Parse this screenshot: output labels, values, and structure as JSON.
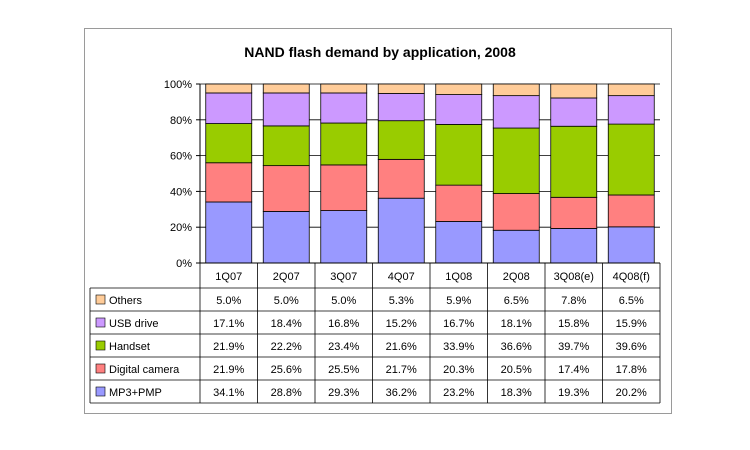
{
  "chart_data": {
    "type": "bar",
    "stacked": true,
    "title": "NAND flash demand by application, 2008",
    "xlabel": "",
    "ylabel": "",
    "ylim": [
      0,
      100
    ],
    "y_ticks": [
      "0%",
      "20%",
      "40%",
      "60%",
      "80%",
      "100%"
    ],
    "categories": [
      "1Q07",
      "2Q07",
      "3Q07",
      "4Q07",
      "1Q08",
      "2Q08",
      "3Q08(e)",
      "4Q08(f)"
    ],
    "series": [
      {
        "name": "MP3+PMP",
        "color": "#9999ff",
        "values": [
          34.1,
          28.8,
          29.3,
          36.2,
          23.2,
          18.3,
          19.3,
          20.2
        ],
        "labels": [
          "34.1%",
          "28.8%",
          "29.3%",
          "36.2%",
          "23.2%",
          "18.3%",
          "19.3%",
          "20.2%"
        ]
      },
      {
        "name": "Digital camera",
        "color": "#ff8080",
        "values": [
          21.9,
          25.6,
          25.5,
          21.7,
          20.3,
          20.5,
          17.4,
          17.8
        ],
        "labels": [
          "21.9%",
          "25.6%",
          "25.5%",
          "21.7%",
          "20.3%",
          "20.5%",
          "17.4%",
          "17.8%"
        ]
      },
      {
        "name": "Handset",
        "color": "#99cc00",
        "values": [
          21.9,
          22.2,
          23.4,
          21.6,
          33.9,
          36.6,
          39.7,
          39.6
        ],
        "labels": [
          "21.9%",
          "22.2%",
          "23.4%",
          "21.6%",
          "33.9%",
          "36.6%",
          "39.7%",
          "39.6%"
        ]
      },
      {
        "name": "USB drive",
        "color": "#cc99ff",
        "values": [
          17.1,
          18.4,
          16.8,
          15.2,
          16.7,
          18.1,
          15.8,
          15.9
        ],
        "labels": [
          "17.1%",
          "18.4%",
          "16.8%",
          "15.2%",
          "16.7%",
          "18.1%",
          "15.8%",
          "15.9%"
        ]
      },
      {
        "name": "Others",
        "color": "#ffcc99",
        "values": [
          5.0,
          5.0,
          5.0,
          5.3,
          5.9,
          6.5,
          7.8,
          6.5
        ],
        "labels": [
          "5.0%",
          "5.0%",
          "5.0%",
          "5.3%",
          "5.9%",
          "6.5%",
          "7.8%",
          "6.5%"
        ]
      }
    ],
    "legend": "data-table-below",
    "grid": true
  }
}
